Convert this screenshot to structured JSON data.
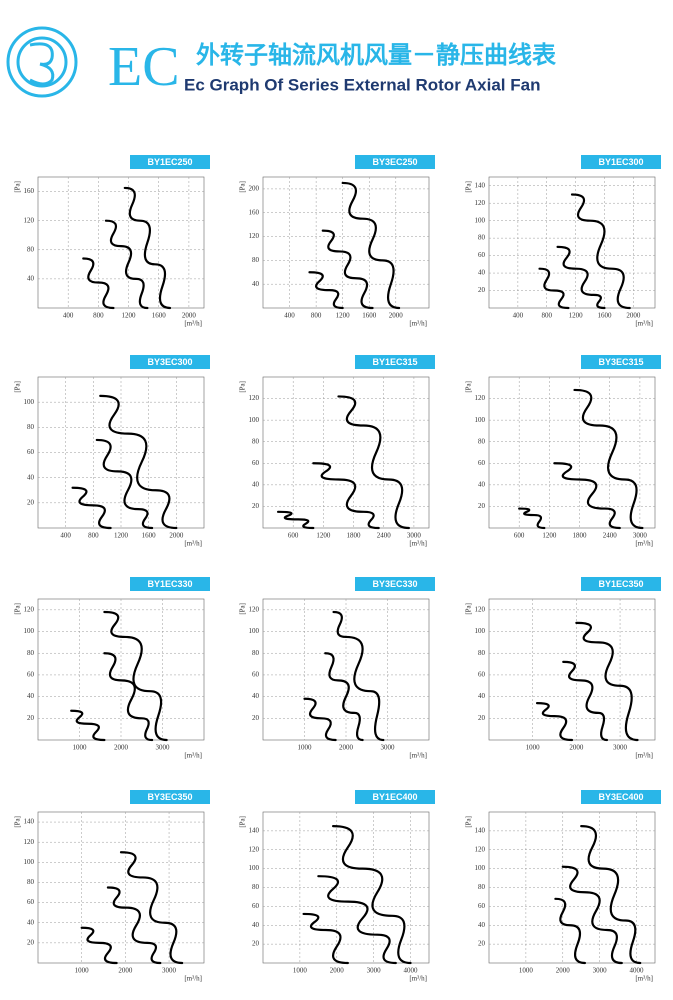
{
  "header": {
    "mark": "EC",
    "title": "外转子轴流风机风量－静压曲线表",
    "subtitle": "Ec Graph Of Series External Rotor Axial Fan"
  },
  "chart_data": [
    {
      "type": "line",
      "title": "BY1EC250",
      "xlabel": "[m³/h]",
      "ylabel": "[Pa]",
      "grid": true,
      "xlim": [
        0,
        2200
      ],
      "xticks": [
        400,
        800,
        1200,
        1600,
        2000
      ],
      "ylim": [
        0,
        180
      ],
      "yticks": [
        40,
        80,
        120,
        160
      ],
      "series": [
        {
          "color": "#000000",
          "x": [
            600,
            800,
            1000
          ],
          "values": [
            68,
            35,
            0
          ]
        },
        {
          "color": "#000000",
          "x": [
            900,
            1100,
            1300,
            1450
          ],
          "values": [
            120,
            85,
            40,
            0
          ]
        },
        {
          "color": "#000000",
          "x": [
            1150,
            1350,
            1550,
            1750
          ],
          "values": [
            165,
            120,
            60,
            0
          ]
        }
      ]
    },
    {
      "type": "line",
      "title": "BY3EC250",
      "xlabel": "[m³/h]",
      "ylabel": "[Pa]",
      "grid": true,
      "xlim": [
        0,
        2500
      ],
      "xticks": [
        400,
        800,
        1200,
        1600,
        2000
      ],
      "ylim": [
        0,
        220
      ],
      "yticks": [
        40,
        80,
        120,
        160,
        200
      ],
      "series": [
        {
          "color": "#000000",
          "x": [
            700,
            1000,
            1200
          ],
          "values": [
            60,
            30,
            0
          ]
        },
        {
          "color": "#000000",
          "x": [
            900,
            1150,
            1400,
            1650
          ],
          "values": [
            130,
            95,
            50,
            0
          ]
        },
        {
          "color": "#000000",
          "x": [
            1200,
            1500,
            1800,
            2050
          ],
          "values": [
            210,
            150,
            80,
            0
          ]
        }
      ]
    },
    {
      "type": "line",
      "title": "BY1EC300",
      "xlabel": "[m³/h]",
      "ylabel": "[Pa]",
      "grid": true,
      "xlim": [
        0,
        2300
      ],
      "xticks": [
        400,
        800,
        1200,
        1600,
        2000
      ],
      "ylim": [
        0,
        150
      ],
      "yticks": [
        20,
        40,
        60,
        80,
        100,
        120,
        140
      ],
      "series": [
        {
          "color": "#000000",
          "x": [
            700,
            900,
            1100
          ],
          "values": [
            45,
            20,
            0
          ]
        },
        {
          "color": "#000000",
          "x": [
            950,
            1200,
            1450,
            1600
          ],
          "values": [
            70,
            45,
            15,
            0
          ]
        },
        {
          "color": "#000000",
          "x": [
            1150,
            1400,
            1700,
            1950
          ],
          "values": [
            130,
            100,
            45,
            0
          ]
        }
      ]
    },
    {
      "type": "line",
      "title": "BY3EC300",
      "xlabel": "[m³/h]",
      "ylabel": "[Pa]",
      "grid": true,
      "xlim": [
        0,
        2400
      ],
      "xticks": [
        400,
        800,
        1200,
        1600,
        2000
      ],
      "ylim": [
        0,
        120
      ],
      "yticks": [
        20,
        40,
        60,
        80,
        100
      ],
      "series": [
        {
          "color": "#000000",
          "x": [
            500,
            800,
            1050
          ],
          "values": [
            32,
            18,
            0
          ]
        },
        {
          "color": "#000000",
          "x": [
            850,
            1150,
            1450,
            1650
          ],
          "values": [
            70,
            45,
            15,
            0
          ]
        },
        {
          "color": "#000000",
          "x": [
            900,
            1300,
            1700,
            2000
          ],
          "values": [
            105,
            75,
            30,
            0
          ]
        }
      ]
    },
    {
      "type": "line",
      "title": "BY1EC315",
      "xlabel": "[m³/h]",
      "ylabel": "[Pa]",
      "grid": true,
      "xlim": [
        0,
        3300
      ],
      "xticks": [
        600,
        1200,
        1800,
        2400,
        3000
      ],
      "ylim": [
        0,
        140
      ],
      "yticks": [
        20,
        40,
        60,
        80,
        100,
        120
      ],
      "series": [
        {
          "color": "#000000",
          "x": [
            300,
            700,
            1000
          ],
          "values": [
            15,
            8,
            0
          ]
        },
        {
          "color": "#000000",
          "x": [
            1000,
            1500,
            2000,
            2300
          ],
          "values": [
            60,
            45,
            15,
            0
          ]
        },
        {
          "color": "#000000",
          "x": [
            1500,
            2000,
            2500,
            2900
          ],
          "values": [
            122,
            95,
            45,
            0
          ]
        }
      ]
    },
    {
      "type": "line",
      "title": "BY3EC315",
      "xlabel": "[m³/h]",
      "ylabel": "[Pa]",
      "grid": true,
      "xlim": [
        0,
        3300
      ],
      "xticks": [
        600,
        1200,
        1800,
        2400,
        3000
      ],
      "ylim": [
        0,
        140
      ],
      "yticks": [
        20,
        40,
        60,
        80,
        100,
        120
      ],
      "series": [
        {
          "color": "#000000",
          "x": [
            600,
            900,
            1100
          ],
          "values": [
            18,
            12,
            0
          ]
        },
        {
          "color": "#000000",
          "x": [
            1300,
            1800,
            2300,
            2600
          ],
          "values": [
            60,
            45,
            18,
            0
          ]
        },
        {
          "color": "#000000",
          "x": [
            1700,
            2200,
            2700,
            3050
          ],
          "values": [
            128,
            95,
            45,
            0
          ]
        }
      ]
    },
    {
      "type": "line",
      "title": "BY1EC330",
      "xlabel": "[m³/h]",
      "ylabel": "[Pa]",
      "grid": true,
      "xlim": [
        0,
        4000
      ],
      "xticks": [
        1000,
        2000,
        3000
      ],
      "ylim": [
        0,
        130
      ],
      "yticks": [
        20,
        40,
        60,
        80,
        100,
        120
      ],
      "series": [
        {
          "color": "#000000",
          "x": [
            800,
            1200,
            1600
          ],
          "values": [
            27,
            15,
            0
          ]
        },
        {
          "color": "#000000",
          "x": [
            1600,
            2000,
            2500,
            2750
          ],
          "values": [
            80,
            55,
            20,
            0
          ]
        },
        {
          "color": "#000000",
          "x": [
            1600,
            2100,
            2700,
            3100
          ],
          "values": [
            118,
            95,
            45,
            0
          ]
        }
      ]
    },
    {
      "type": "line",
      "title": "BY3EC330",
      "xlabel": "[m³/h]",
      "ylabel": "[Pa]",
      "grid": true,
      "xlim": [
        0,
        4000
      ],
      "xticks": [
        1000,
        2000,
        3000
      ],
      "ylim": [
        0,
        130
      ],
      "yticks": [
        20,
        40,
        60,
        80,
        100,
        120
      ],
      "series": [
        {
          "color": "#000000",
          "x": [
            1000,
            1400,
            1750
          ],
          "values": [
            38,
            20,
            0
          ]
        },
        {
          "color": "#000000",
          "x": [
            1500,
            1800,
            2200,
            2400
          ],
          "values": [
            80,
            55,
            25,
            0
          ]
        },
        {
          "color": "#000000",
          "x": [
            1700,
            2000,
            2600,
            2900
          ],
          "values": [
            118,
            95,
            45,
            0
          ]
        }
      ]
    },
    {
      "type": "line",
      "title": "BY1EC350",
      "xlabel": "[m³/h]",
      "ylabel": "[Pa]",
      "grid": true,
      "xlim": [
        0,
        3800
      ],
      "xticks": [
        1000,
        2000,
        3000
      ],
      "ylim": [
        0,
        130
      ],
      "yticks": [
        20,
        40,
        60,
        80,
        100,
        120
      ],
      "series": [
        {
          "color": "#000000",
          "x": [
            1100,
            1500,
            1900
          ],
          "values": [
            34,
            22,
            0
          ]
        },
        {
          "color": "#000000",
          "x": [
            1700,
            2100,
            2500,
            2700
          ],
          "values": [
            72,
            55,
            25,
            0
          ]
        },
        {
          "color": "#000000",
          "x": [
            2000,
            2500,
            3000,
            3400
          ],
          "values": [
            108,
            90,
            50,
            0
          ]
        }
      ]
    },
    {
      "type": "line",
      "title": "BY3EC350",
      "xlabel": "[m³/h]",
      "ylabel": "[Pa]",
      "grid": true,
      "xlim": [
        0,
        3800
      ],
      "xticks": [
        1000,
        2000,
        3000
      ],
      "ylim": [
        0,
        150
      ],
      "yticks": [
        20,
        40,
        60,
        80,
        100,
        120,
        140
      ],
      "series": [
        {
          "color": "#000000",
          "x": [
            1000,
            1400,
            1800
          ],
          "values": [
            35,
            20,
            0
          ]
        },
        {
          "color": "#000000",
          "x": [
            1600,
            2000,
            2500,
            2800
          ],
          "values": [
            75,
            55,
            20,
            0
          ]
        },
        {
          "color": "#000000",
          "x": [
            1900,
            2400,
            2900,
            3300
          ],
          "values": [
            110,
            85,
            40,
            0
          ]
        }
      ]
    },
    {
      "type": "line",
      "title": "BY1EC400",
      "xlabel": "[m³/h]",
      "ylabel": "[Pa]",
      "grid": true,
      "xlim": [
        0,
        4500
      ],
      "xticks": [
        1000,
        2000,
        3000,
        4000
      ],
      "ylim": [
        0,
        160
      ],
      "yticks": [
        20,
        40,
        60,
        80,
        100,
        120,
        140
      ],
      "series": [
        {
          "color": "#000000",
          "x": [
            1100,
            1700,
            2300
          ],
          "values": [
            52,
            35,
            0
          ]
        },
        {
          "color": "#000000",
          "x": [
            1500,
            2300,
            3100,
            3600
          ],
          "values": [
            92,
            65,
            30,
            0
          ]
        },
        {
          "color": "#000000",
          "x": [
            1900,
            2700,
            3500,
            4000
          ],
          "values": [
            145,
            100,
            50,
            0
          ]
        }
      ]
    },
    {
      "type": "line",
      "title": "BY3EC400",
      "xlabel": "[m³/h]",
      "ylabel": "[Pa]",
      "grid": true,
      "xlim": [
        0,
        4500
      ],
      "xticks": [
        1000,
        2000,
        3000,
        4000
      ],
      "ylim": [
        0,
        160
      ],
      "yticks": [
        20,
        40,
        60,
        80,
        100,
        120,
        140
      ],
      "series": [
        {
          "color": "#000000",
          "x": [
            1800,
            2200,
            2600
          ],
          "values": [
            68,
            40,
            0
          ]
        },
        {
          "color": "#000000",
          "x": [
            2000,
            2600,
            3200,
            3600
          ],
          "values": [
            102,
            75,
            35,
            0
          ]
        },
        {
          "color": "#000000",
          "x": [
            2500,
            3100,
            3700,
            4100
          ],
          "values": [
            145,
            100,
            45,
            0
          ]
        }
      ]
    }
  ]
}
